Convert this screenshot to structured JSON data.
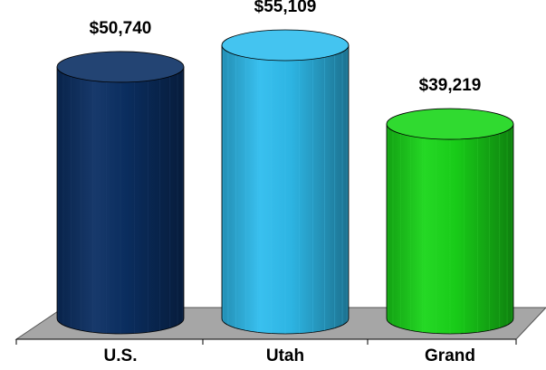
{
  "chart_data": {
    "type": "bar3d-cylinder",
    "categories": [
      "U.S.",
      "Utah",
      "Grand"
    ],
    "values": [
      50740,
      55109,
      39219
    ],
    "value_labels": [
      "$50,740",
      "$55,109",
      "$39,219"
    ],
    "colors": [
      "#0b2f63",
      "#2fbdee",
      "#19d619"
    ]
  }
}
